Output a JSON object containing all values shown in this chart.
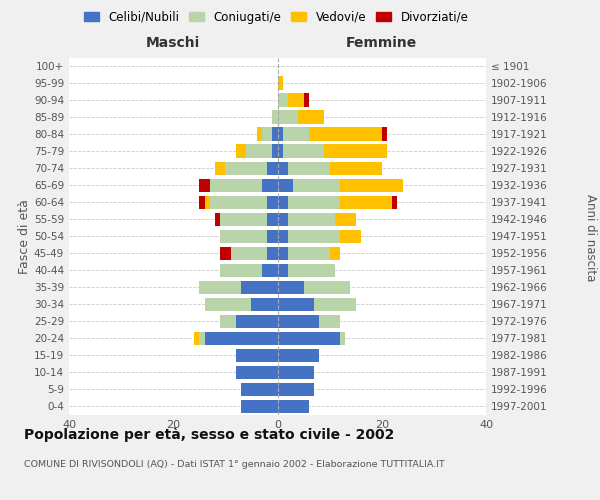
{
  "age_groups": [
    "0-4",
    "5-9",
    "10-14",
    "15-19",
    "20-24",
    "25-29",
    "30-34",
    "35-39",
    "40-44",
    "45-49",
    "50-54",
    "55-59",
    "60-64",
    "65-69",
    "70-74",
    "75-79",
    "80-84",
    "85-89",
    "90-94",
    "95-99",
    "100+"
  ],
  "birth_years": [
    "1997-2001",
    "1992-1996",
    "1987-1991",
    "1982-1986",
    "1977-1981",
    "1972-1976",
    "1967-1971",
    "1962-1966",
    "1957-1961",
    "1952-1956",
    "1947-1951",
    "1942-1946",
    "1937-1941",
    "1932-1936",
    "1927-1931",
    "1922-1926",
    "1917-1921",
    "1912-1916",
    "1907-1911",
    "1902-1906",
    "≤ 1901"
  ],
  "maschi": {
    "celibi": [
      7,
      7,
      8,
      8,
      14,
      8,
      5,
      7,
      3,
      2,
      2,
      2,
      2,
      3,
      2,
      1,
      1,
      0,
      0,
      0,
      0
    ],
    "coniugati": [
      0,
      0,
      0,
      0,
      1,
      3,
      9,
      8,
      8,
      7,
      9,
      9,
      11,
      10,
      8,
      5,
      2,
      1,
      0,
      0,
      0
    ],
    "vedovi": [
      0,
      0,
      0,
      0,
      1,
      0,
      0,
      0,
      0,
      0,
      0,
      0,
      1,
      0,
      2,
      2,
      1,
      0,
      0,
      0,
      0
    ],
    "divorziati": [
      0,
      0,
      0,
      0,
      0,
      0,
      0,
      0,
      0,
      2,
      0,
      1,
      1,
      2,
      0,
      0,
      0,
      0,
      0,
      0,
      0
    ]
  },
  "femmine": {
    "nubili": [
      6,
      7,
      7,
      8,
      12,
      8,
      7,
      5,
      2,
      2,
      2,
      2,
      2,
      3,
      2,
      1,
      1,
      0,
      0,
      0,
      0
    ],
    "coniugate": [
      0,
      0,
      0,
      0,
      1,
      4,
      8,
      9,
      9,
      8,
      10,
      9,
      10,
      9,
      8,
      8,
      5,
      4,
      2,
      0,
      0
    ],
    "vedove": [
      0,
      0,
      0,
      0,
      0,
      0,
      0,
      0,
      0,
      2,
      4,
      4,
      10,
      12,
      10,
      12,
      14,
      5,
      3,
      1,
      0
    ],
    "divorziate": [
      0,
      0,
      0,
      0,
      0,
      0,
      0,
      0,
      0,
      0,
      0,
      0,
      1,
      0,
      0,
      0,
      1,
      0,
      1,
      0,
      0
    ]
  },
  "colors": {
    "celibi": "#4472c4",
    "coniugati": "#b8d4a8",
    "vedovi": "#ffc000",
    "divorziati": "#c00000"
  },
  "legend_labels": [
    "Celibi/Nubili",
    "Coniugati/e",
    "Vedovi/e",
    "Divorziati/e"
  ],
  "title": "Popolazione per età, sesso e stato civile - 2002",
  "subtitle": "COMUNE DI RIVISONDOLI (AQ) - Dati ISTAT 1° gennaio 2002 - Elaborazione TUTTITALIA.IT",
  "xlabel_left": "Maschi",
  "xlabel_right": "Femmine",
  "ylabel_left": "Fasce di età",
  "ylabel_right": "Anni di nascita",
  "xlim": 40,
  "bg_color": "#f0f0f0",
  "plot_bg": "#ffffff"
}
